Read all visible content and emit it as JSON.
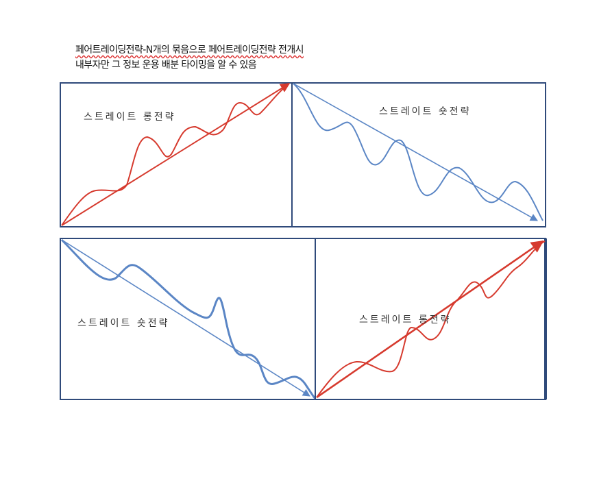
{
  "caption": {
    "line1": "페어트레이딩전략-N개의 묶음으로 페어트레이딩전략 전개시",
    "line2": "내부자만 그 정보 운용 배분 타이밍을 알 수 있음"
  },
  "panels": {
    "top_left": {
      "label": "스트레이트 롱전략",
      "color": "#d63a2e"
    },
    "top_right": {
      "label": "스트레이트 숏전략",
      "color": "#5b86c5"
    },
    "bottom_left": {
      "label": "스트레이트 숏전략",
      "color": "#5b86c5"
    },
    "bottom_right": {
      "label": "스트레이트 롱전략",
      "color": "#d63a2e"
    }
  },
  "colors": {
    "frame": "#2f4a7a",
    "long": "#d63a2e",
    "short": "#5b86c5"
  }
}
